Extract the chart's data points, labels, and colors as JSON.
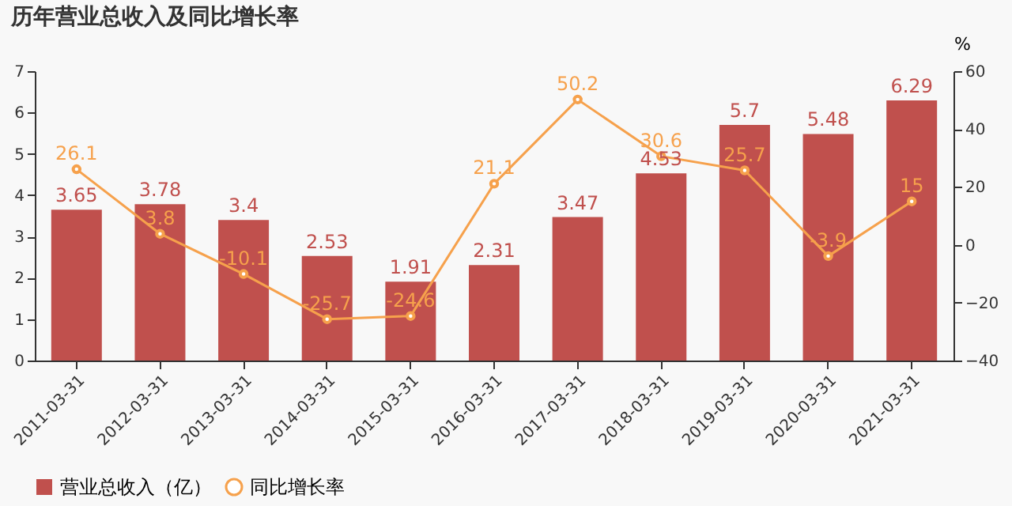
{
  "chart_data": {
    "type": "bar",
    "title": "历年营业总收入及同比增长率",
    "categories": [
      "2011-03-31",
      "2012-03-31",
      "2013-03-31",
      "2014-03-31",
      "2015-03-31",
      "2016-03-31",
      "2017-03-31",
      "2018-03-31",
      "2019-03-31",
      "2020-03-31",
      "2021-03-31"
    ],
    "series": [
      {
        "name": "营业总收入（亿）",
        "color": "#c0504d",
        "values": [
          3.65,
          3.78,
          3.4,
          2.53,
          1.91,
          2.31,
          3.47,
          4.53,
          5.7,
          5.48,
          6.29
        ]
      },
      {
        "name": "同比增长率",
        "type": "line",
        "axis": "y2",
        "color": "#f6a14c",
        "values": [
          26.1,
          3.8,
          -10.1,
          -25.7,
          -24.6,
          21.1,
          50.2,
          30.6,
          25.7,
          -3.9,
          15
        ]
      }
    ],
    "ylim": [
      0,
      7
    ],
    "yticks": [
      0,
      1,
      2,
      3,
      4,
      5,
      6,
      7
    ],
    "y2lim": [
      -40,
      60
    ],
    "y2ticks": [
      -40,
      -20,
      0,
      20,
      40,
      60
    ],
    "y2label": "%",
    "marker": "circle",
    "data_labels": true,
    "legend": "bottom",
    "grid": false
  }
}
